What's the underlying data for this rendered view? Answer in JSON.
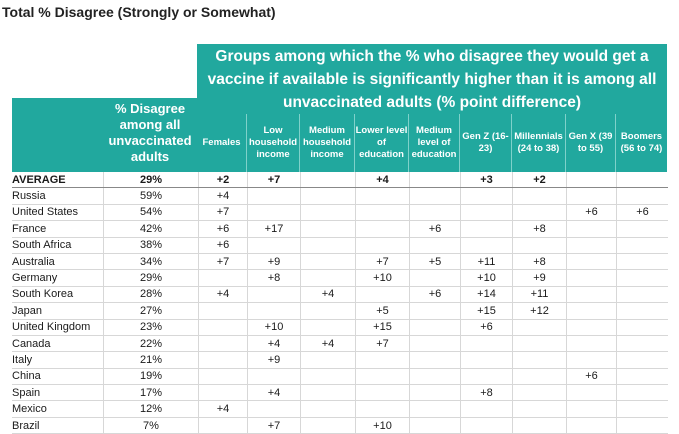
{
  "chart_data": {
    "type": "table",
    "title": "Total % Disagree (Strongly or Somewhat)",
    "banner": "Groups among which the % who disagree they would get a vaccine if available is significantly higher than it is among all unvaccinated adults (% point difference)",
    "pct_header": "% Disagree among all unvaccinated adults",
    "columns": [
      "Females",
      "Low household income",
      "Medium household income",
      "Lower level of education",
      "Medium level of education",
      "Gen Z (16-23)",
      "Millennials (24 to 38)",
      "Gen X (39 to 55)",
      "Boomers (56 to 74)"
    ],
    "rows": [
      {
        "name": "AVERAGE",
        "pct": "29%",
        "vals": [
          "+2",
          "+7",
          "",
          "+4",
          "",
          "+3",
          "+2",
          "",
          ""
        ]
      },
      {
        "name": "Russia",
        "pct": "59%",
        "vals": [
          "+4",
          "",
          "",
          "",
          "",
          "",
          "",
          "",
          ""
        ]
      },
      {
        "name": "United States",
        "pct": "54%",
        "vals": [
          "+7",
          "",
          "",
          "",
          "",
          "",
          "",
          "+6",
          "+6"
        ]
      },
      {
        "name": "France",
        "pct": "42%",
        "vals": [
          "+6",
          "+17",
          "",
          "",
          "+6",
          "",
          "+8",
          "",
          ""
        ]
      },
      {
        "name": "South Africa",
        "pct": "38%",
        "vals": [
          "+6",
          "",
          "",
          "",
          "",
          "",
          "",
          "",
          ""
        ]
      },
      {
        "name": "Australia",
        "pct": "34%",
        "vals": [
          "+7",
          "+9",
          "",
          "+7",
          "+5",
          "+11",
          "+8",
          "",
          ""
        ]
      },
      {
        "name": "Germany",
        "pct": "29%",
        "vals": [
          "",
          "+8",
          "",
          "+10",
          "",
          "+10",
          "+9",
          "",
          ""
        ]
      },
      {
        "name": "South Korea",
        "pct": "28%",
        "vals": [
          "+4",
          "",
          "+4",
          "",
          "+6",
          "+14",
          "+11",
          "",
          ""
        ]
      },
      {
        "name": "Japan",
        "pct": "27%",
        "vals": [
          "",
          "",
          "",
          "+5",
          "",
          "+15",
          "+12",
          "",
          ""
        ]
      },
      {
        "name": "United Kingdom",
        "pct": "23%",
        "vals": [
          "",
          "+10",
          "",
          "+15",
          "",
          "+6",
          "",
          "",
          ""
        ]
      },
      {
        "name": "Canada",
        "pct": "22%",
        "vals": [
          "",
          "+4",
          "+4",
          "+7",
          "",
          "",
          "",
          "",
          ""
        ]
      },
      {
        "name": "Italy",
        "pct": "21%",
        "vals": [
          "",
          "+9",
          "",
          "",
          "",
          "",
          "",
          "",
          ""
        ]
      },
      {
        "name": "China",
        "pct": "19%",
        "vals": [
          "",
          "",
          "",
          "",
          "",
          "",
          "",
          "+6",
          ""
        ]
      },
      {
        "name": "Spain",
        "pct": "17%",
        "vals": [
          "",
          "+4",
          "",
          "",
          "",
          "+8",
          "",
          "",
          ""
        ]
      },
      {
        "name": "Mexico",
        "pct": "12%",
        "vals": [
          "+4",
          "",
          "",
          "",
          "",
          "",
          "",
          "",
          ""
        ]
      },
      {
        "name": "Brazil",
        "pct": "7%",
        "vals": [
          "",
          "+7",
          "",
          "+10",
          "",
          "",
          "",
          "",
          ""
        ]
      }
    ]
  }
}
